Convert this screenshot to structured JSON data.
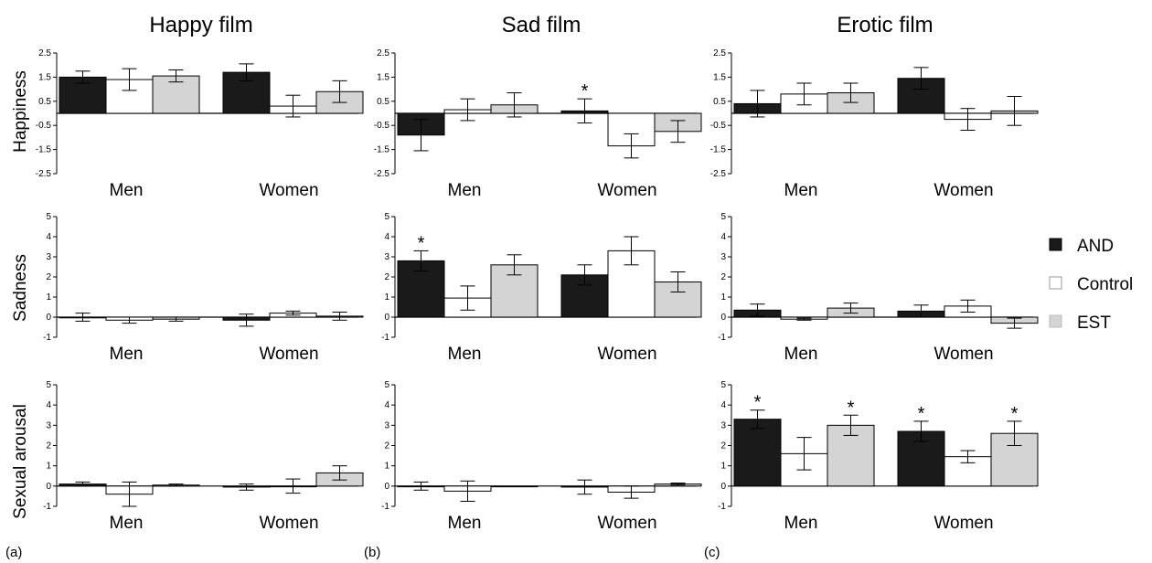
{
  "column_titles": [
    "Happy film",
    "Sad film",
    "Erotic film"
  ],
  "row_labels": [
    "Happiness",
    "Sadness",
    "Sexual arousal"
  ],
  "panel_labels": [
    "(a)",
    "(b)",
    "(c)"
  ],
  "legend": [
    {
      "name": "AND",
      "color": "#1a1a1a"
    },
    {
      "name": "Control",
      "color": "#ffffff"
    },
    {
      "name": "EST",
      "color": "#d4d4d4"
    }
  ],
  "chart_data": [
    {
      "type": "bar",
      "film": "Happy film",
      "measure": "Happiness",
      "categories": [
        "Men",
        "Women"
      ],
      "ylim": [
        -2.5,
        2.5
      ],
      "yticks": [
        "2.5",
        "1.5",
        "0.5",
        "-0.5",
        "-1.5",
        "-2.5"
      ],
      "series": [
        {
          "name": "AND",
          "values": [
            1.5,
            1.7
          ],
          "errors": [
            0.25,
            0.35
          ],
          "sig": [
            false,
            false
          ]
        },
        {
          "name": "Control",
          "values": [
            1.4,
            0.3
          ],
          "errors": [
            0.45,
            0.45
          ],
          "sig": [
            false,
            false
          ]
        },
        {
          "name": "EST",
          "values": [
            1.55,
            0.9
          ],
          "errors": [
            0.25,
            0.45
          ],
          "sig": [
            false,
            false
          ]
        }
      ]
    },
    {
      "type": "bar",
      "film": "Sad film",
      "measure": "Happiness",
      "categories": [
        "Men",
        "Women"
      ],
      "ylim": [
        -2.5,
        2.5
      ],
      "yticks": [
        "2.5",
        "1.5",
        "0.5",
        "-0.5",
        "-1.5",
        "-2.5"
      ],
      "series": [
        {
          "name": "AND",
          "values": [
            -0.9,
            0.1
          ],
          "errors": [
            0.65,
            0.5
          ],
          "sig": [
            false,
            true
          ]
        },
        {
          "name": "Control",
          "values": [
            0.15,
            -1.35
          ],
          "errors": [
            0.45,
            0.5
          ],
          "sig": [
            false,
            false
          ]
        },
        {
          "name": "EST",
          "values": [
            0.35,
            -0.75
          ],
          "errors": [
            0.5,
            0.45
          ],
          "sig": [
            false,
            false
          ]
        }
      ]
    },
    {
      "type": "bar",
      "film": "Erotic film",
      "measure": "Happiness",
      "categories": [
        "Men",
        "Women"
      ],
      "ylim": [
        -2.5,
        2.5
      ],
      "yticks": [
        "2.5",
        "1.5",
        "0.5",
        "-0.5",
        "-1.5",
        "-2.5"
      ],
      "series": [
        {
          "name": "AND",
          "values": [
            0.4,
            1.45
          ],
          "errors": [
            0.55,
            0.45
          ],
          "sig": [
            false,
            false
          ]
        },
        {
          "name": "Control",
          "values": [
            0.8,
            -0.25
          ],
          "errors": [
            0.45,
            0.45
          ],
          "sig": [
            false,
            false
          ]
        },
        {
          "name": "EST",
          "values": [
            0.85,
            0.1
          ],
          "errors": [
            0.4,
            0.6
          ],
          "sig": [
            false,
            false
          ]
        }
      ]
    },
    {
      "type": "bar",
      "film": "Happy film",
      "measure": "Sadness",
      "categories": [
        "Men",
        "Women"
      ],
      "ylim": [
        -1,
        5
      ],
      "yticks": [
        "5",
        "4",
        "3",
        "2",
        "1",
        "0",
        "-1"
      ],
      "series": [
        {
          "name": "AND",
          "values": [
            0.0,
            -0.15
          ],
          "errors": [
            0.2,
            0.3
          ],
          "sig": [
            false,
            false
          ]
        },
        {
          "name": "Control",
          "values": [
            -0.15,
            0.2
          ],
          "errors": [
            0.15,
            0.1
          ],
          "sig": [
            false,
            false
          ]
        },
        {
          "name": "EST",
          "values": [
            -0.1,
            0.05
          ],
          "errors": [
            0.1,
            0.2
          ],
          "sig": [
            false,
            false
          ]
        }
      ]
    },
    {
      "type": "bar",
      "film": "Sad film",
      "measure": "Sadness",
      "categories": [
        "Men",
        "Women"
      ],
      "ylim": [
        -1,
        5
      ],
      "yticks": [
        "5",
        "4",
        "3",
        "2",
        "1",
        "0",
        "-1"
      ],
      "series": [
        {
          "name": "AND",
          "values": [
            2.8,
            2.1
          ],
          "errors": [
            0.5,
            0.5
          ],
          "sig": [
            true,
            false
          ]
        },
        {
          "name": "Control",
          "values": [
            0.95,
            3.3
          ],
          "errors": [
            0.6,
            0.7
          ],
          "sig": [
            false,
            false
          ]
        },
        {
          "name": "EST",
          "values": [
            2.6,
            1.75
          ],
          "errors": [
            0.5,
            0.5
          ],
          "sig": [
            false,
            false
          ]
        }
      ]
    },
    {
      "type": "bar",
      "film": "Erotic film",
      "measure": "Sadness",
      "categories": [
        "Men",
        "Women"
      ],
      "ylim": [
        -1,
        5
      ],
      "yticks": [
        "5",
        "4",
        "3",
        "2",
        "1",
        "0",
        "-1"
      ],
      "series": [
        {
          "name": "AND",
          "values": [
            0.35,
            0.3
          ],
          "errors": [
            0.3,
            0.3
          ],
          "sig": [
            false,
            false
          ]
        },
        {
          "name": "Control",
          "values": [
            -0.1,
            0.55
          ],
          "errors": [
            0.05,
            0.3
          ],
          "sig": [
            false,
            false
          ]
        },
        {
          "name": "EST",
          "values": [
            0.45,
            -0.3
          ],
          "errors": [
            0.25,
            0.25
          ],
          "sig": [
            false,
            false
          ]
        }
      ]
    },
    {
      "type": "bar",
      "film": "Happy film",
      "measure": "Sexual arousal",
      "categories": [
        "Men",
        "Women"
      ],
      "ylim": [
        -1,
        5
      ],
      "yticks": [
        "5",
        "4",
        "3",
        "2",
        "1",
        "0",
        "-1"
      ],
      "series": [
        {
          "name": "AND",
          "values": [
            0.1,
            -0.05
          ],
          "errors": [
            0.1,
            0.15
          ],
          "sig": [
            false,
            false
          ]
        },
        {
          "name": "Control",
          "values": [
            -0.4,
            0.0
          ],
          "errors": [
            0.6,
            0.35
          ],
          "sig": [
            false,
            false
          ]
        },
        {
          "name": "EST",
          "values": [
            0.05,
            0.65
          ],
          "errors": [
            0.05,
            0.35
          ],
          "sig": [
            false,
            false
          ]
        }
      ]
    },
    {
      "type": "bar",
      "film": "Sad film",
      "measure": "Sexual arousal",
      "categories": [
        "Men",
        "Women"
      ],
      "ylim": [
        -1,
        5
      ],
      "yticks": [
        "5",
        "4",
        "3",
        "2",
        "1",
        "0",
        "-1"
      ],
      "series": [
        {
          "name": "AND",
          "values": [
            0.0,
            -0.05
          ],
          "errors": [
            0.2,
            0.35
          ],
          "sig": [
            false,
            false
          ]
        },
        {
          "name": "Control",
          "values": [
            -0.25,
            -0.3
          ],
          "errors": [
            0.5,
            0.3
          ],
          "sig": [
            false,
            false
          ]
        },
        {
          "name": "EST",
          "values": [
            0.0,
            0.1
          ],
          "errors": [
            0.0,
            0.05
          ],
          "sig": [
            false,
            false
          ]
        }
      ]
    },
    {
      "type": "bar",
      "film": "Erotic film",
      "measure": "Sexual arousal",
      "categories": [
        "Men",
        "Women"
      ],
      "ylim": [
        -1,
        5
      ],
      "yticks": [
        "5",
        "4",
        "3",
        "2",
        "1",
        "0",
        "-1"
      ],
      "series": [
        {
          "name": "AND",
          "values": [
            3.3,
            2.7
          ],
          "errors": [
            0.45,
            0.5
          ],
          "sig": [
            true,
            true
          ]
        },
        {
          "name": "Control",
          "values": [
            1.6,
            1.45
          ],
          "errors": [
            0.8,
            0.3
          ],
          "sig": [
            false,
            false
          ]
        },
        {
          "name": "EST",
          "values": [
            3.0,
            2.6
          ],
          "errors": [
            0.5,
            0.6
          ],
          "sig": [
            true,
            true
          ]
        }
      ]
    }
  ]
}
